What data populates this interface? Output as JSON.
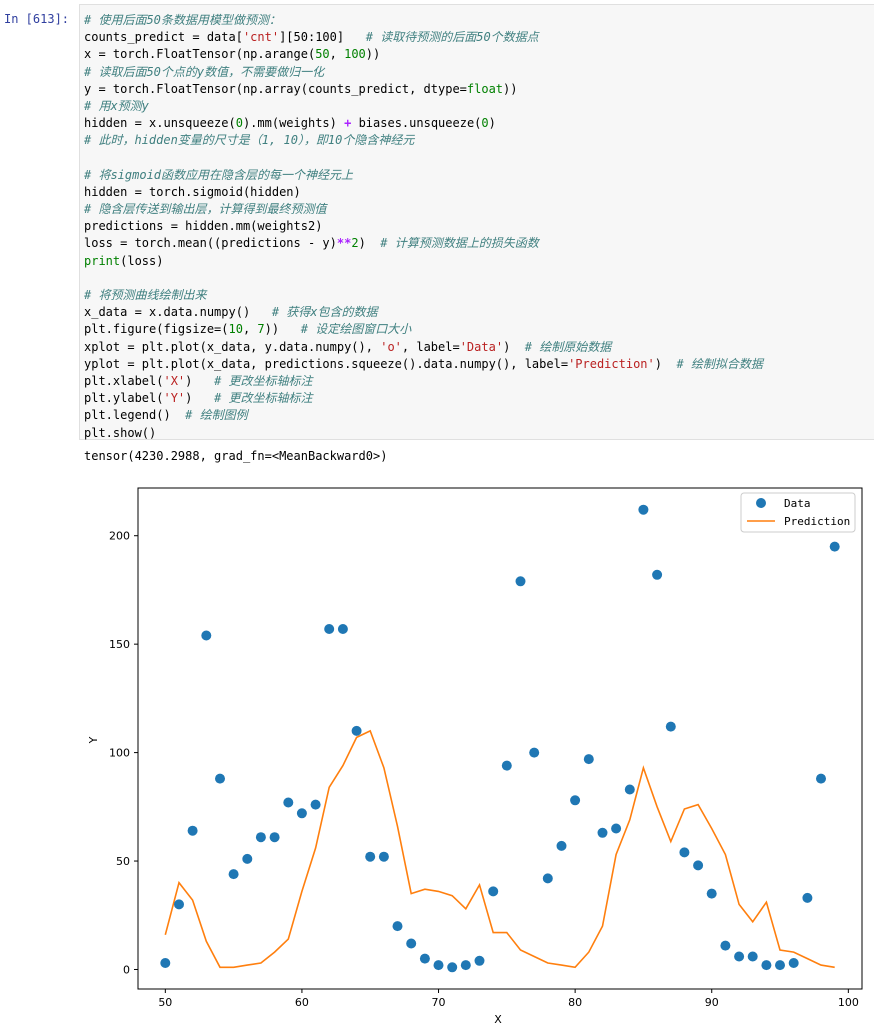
{
  "cell": {
    "prompt": "In  [613]:",
    "code_lines": [
      [
        {
          "t": "# 使用后面50条数据用模型做预测：",
          "c": "c"
        }
      ],
      [
        {
          "t": "counts_predict = data["
        },
        {
          "t": "'cnt'",
          "c": "s"
        },
        {
          "t": "][50:100]   "
        },
        {
          "t": "# 读取待预测的后面50个数据点",
          "c": "c"
        }
      ],
      [
        {
          "t": "x = torch.FloatTensor(np.arange("
        },
        {
          "t": "50",
          "c": "n"
        },
        {
          "t": ", "
        },
        {
          "t": "100",
          "c": "n"
        },
        {
          "t": "))"
        }
      ],
      [
        {
          "t": "# 读取后面50个点的y数值，不需要做归一化",
          "c": "c"
        }
      ],
      [
        {
          "t": "y = torch.FloatTensor(np.array(counts_predict, dtype="
        },
        {
          "t": "float",
          "c": "k"
        },
        {
          "t": "))"
        }
      ],
      [
        {
          "t": "# 用x预测y",
          "c": "c"
        }
      ],
      [
        {
          "t": "hidden = x.unsqueeze("
        },
        {
          "t": "0",
          "c": "n"
        },
        {
          "t": ").mm(weights) "
        },
        {
          "t": "+",
          "c": "o"
        },
        {
          "t": " biases.unsqueeze("
        },
        {
          "t": "0",
          "c": "n"
        },
        {
          "t": ")"
        }
      ],
      [
        {
          "t": "# 此时，hidden变量的尺寸是（1, 10），即10个隐含神经元",
          "c": "c"
        }
      ],
      [
        {
          "t": ""
        }
      ],
      [
        {
          "t": "# 将sigmoid函数应用在隐含层的每一个神经元上",
          "c": "c"
        }
      ],
      [
        {
          "t": "hidden = torch.sigmoid(hidden)"
        }
      ],
      [
        {
          "t": "# 隐含层传送到输出层，计算得到最终预测值",
          "c": "c"
        }
      ],
      [
        {
          "t": "predictions = hidden.mm(weights2)"
        }
      ],
      [
        {
          "t": "loss = torch.mean((predictions - y)"
        },
        {
          "t": "**",
          "c": "o"
        },
        {
          "t": "2",
          "c": "n"
        },
        {
          "t": ")  "
        },
        {
          "t": "# 计算预测数据上的损失函数",
          "c": "c"
        }
      ],
      [
        {
          "t": "print",
          "c": "k"
        },
        {
          "t": "(loss)"
        }
      ],
      [
        {
          "t": ""
        }
      ],
      [
        {
          "t": "# 将预测曲线绘制出来",
          "c": "c"
        }
      ],
      [
        {
          "t": "x_data = x.data.numpy()   "
        },
        {
          "t": "# 获得x包含的数据",
          "c": "c"
        }
      ],
      [
        {
          "t": "plt.figure(figsize=("
        },
        {
          "t": "10",
          "c": "n"
        },
        {
          "t": ", "
        },
        {
          "t": "7",
          "c": "n"
        },
        {
          "t": "))   "
        },
        {
          "t": "# 设定绘图窗口大小",
          "c": "c"
        }
      ],
      [
        {
          "t": "xplot = plt.plot(x_data, y.data.numpy(), "
        },
        {
          "t": "'o'",
          "c": "s"
        },
        {
          "t": ", label="
        },
        {
          "t": "'Data'",
          "c": "s"
        },
        {
          "t": ")  "
        },
        {
          "t": "# 绘制原始数据",
          "c": "c"
        }
      ],
      [
        {
          "t": "yplot = plt.plot(x_data, predictions.squeeze().data.numpy(), label="
        },
        {
          "t": "'Prediction'",
          "c": "s"
        },
        {
          "t": ")  "
        },
        {
          "t": "# 绘制拟合数据",
          "c": "c"
        }
      ],
      [
        {
          "t": "plt.xlabel("
        },
        {
          "t": "'X'",
          "c": "s"
        },
        {
          "t": ")   "
        },
        {
          "t": "# 更改坐标轴标注",
          "c": "c"
        }
      ],
      [
        {
          "t": "plt.ylabel("
        },
        {
          "t": "'Y'",
          "c": "s"
        },
        {
          "t": ")   "
        },
        {
          "t": "# 更改坐标轴标注",
          "c": "c"
        }
      ],
      [
        {
          "t": "plt.legend()  "
        },
        {
          "t": "# 绘制图例",
          "c": "c"
        }
      ],
      [
        {
          "t": "plt.show()"
        }
      ]
    ]
  },
  "output": {
    "stdout": "tensor(4230.2988, grad_fn=<MeanBackward0>)"
  },
  "chart_data": {
    "type": "line",
    "xlabel": "X",
    "ylabel": "Y",
    "xlim": [
      48,
      101
    ],
    "ylim": [
      -9,
      222
    ],
    "xticks": [
      50,
      60,
      70,
      80,
      90,
      100
    ],
    "yticks": [
      0,
      50,
      100,
      150,
      200
    ],
    "grid": false,
    "legend_position": "top-right",
    "colors": {
      "data": "#1f77b4",
      "prediction": "#ff7f0e"
    },
    "series": [
      {
        "name": "Data",
        "style": "scatter",
        "x": [
          50,
          51,
          52,
          53,
          54,
          55,
          56,
          57,
          58,
          59,
          60,
          61,
          62,
          63,
          64,
          65,
          66,
          67,
          68,
          69,
          70,
          71,
          72,
          73,
          74,
          75,
          76,
          77,
          78,
          79,
          80,
          81,
          82,
          83,
          84,
          85,
          86,
          87,
          88,
          89,
          90,
          91,
          92,
          93,
          94,
          95,
          96,
          97,
          98,
          99
        ],
        "values": [
          3,
          30,
          64,
          154,
          88,
          44,
          51,
          61,
          61,
          77,
          72,
          76,
          157,
          157,
          110,
          52,
          52,
          20,
          12,
          5,
          2,
          1,
          2,
          4,
          36,
          94,
          179,
          100,
          42,
          57,
          78,
          97,
          63,
          65,
          83,
          212,
          182,
          112,
          54,
          48,
          35,
          11,
          6,
          6,
          2,
          2,
          3,
          33,
          88,
          195
        ]
      },
      {
        "name": "Prediction",
        "style": "line",
        "x": [
          50,
          51,
          52,
          53,
          54,
          55,
          56,
          57,
          58,
          59,
          60,
          61,
          62,
          63,
          64,
          65,
          66,
          67,
          68,
          69,
          70,
          71,
          72,
          73,
          74,
          75,
          76,
          77,
          78,
          79,
          80,
          81,
          82,
          83,
          84,
          85,
          86,
          87,
          88,
          89,
          90,
          91,
          92,
          93,
          94,
          95,
          96,
          97,
          98,
          99
        ],
        "values": [
          16,
          40,
          32,
          13,
          1,
          1,
          2,
          3,
          8,
          14,
          36,
          56,
          84,
          94,
          107,
          110,
          93,
          66,
          35,
          37,
          36,
          34,
          28,
          39,
          17,
          17,
          9,
          6,
          3,
          2,
          1,
          8,
          20,
          53,
          69,
          93,
          75,
          59,
          74,
          76,
          65,
          53,
          30,
          22,
          31,
          9,
          8,
          5,
          2,
          1
        ]
      }
    ]
  }
}
